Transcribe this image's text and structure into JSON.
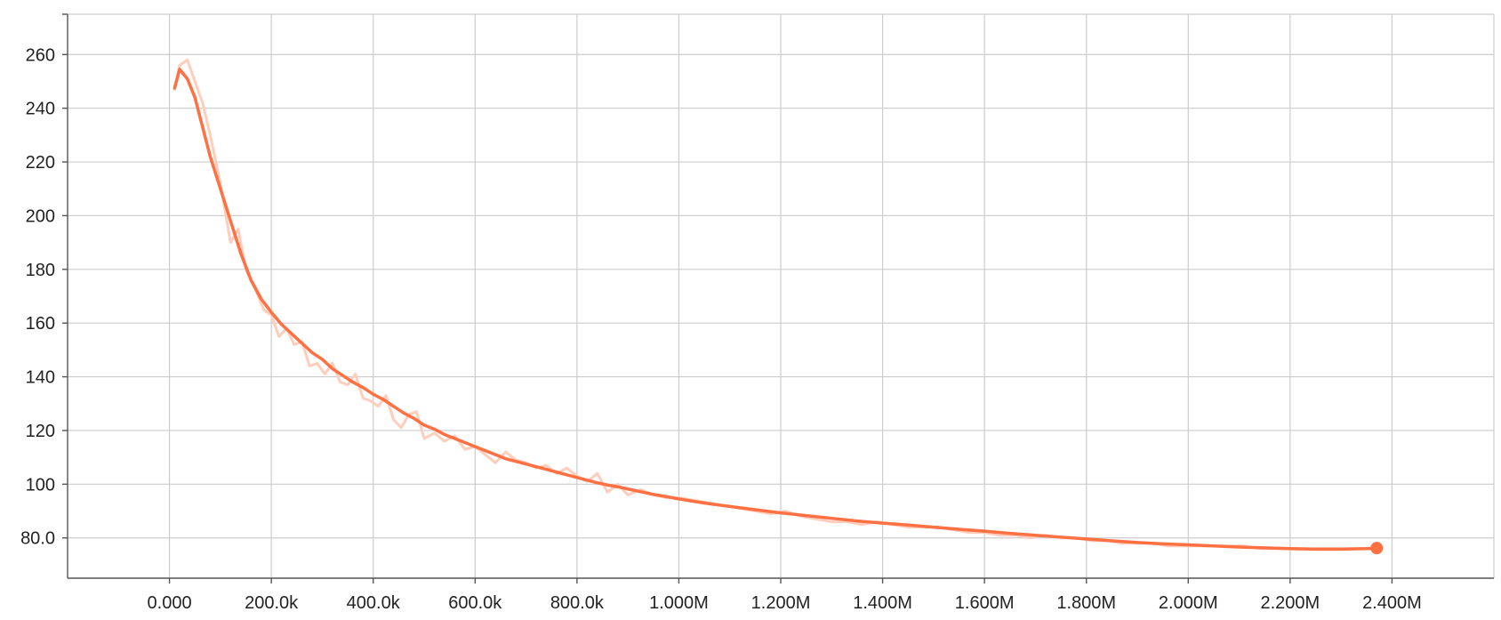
{
  "chart_data": {
    "type": "line",
    "title": "",
    "xlabel": "",
    "ylabel": "",
    "xlim": [
      -200000,
      2600000
    ],
    "ylim": [
      65,
      275
    ],
    "x_ticks": [
      0,
      200000,
      400000,
      600000,
      800000,
      1000000,
      1200000,
      1400000,
      1600000,
      1800000,
      2000000,
      2200000,
      2400000
    ],
    "x_tick_labels": [
      "0.000",
      "200.0k",
      "400.0k",
      "600.0k",
      "800.0k",
      "1.000M",
      "1.200M",
      "1.400M",
      "1.600M",
      "1.800M",
      "2.000M",
      "2.200M",
      "2.400M"
    ],
    "y_ticks": [
      80,
      100,
      120,
      140,
      160,
      180,
      200,
      220,
      240,
      260
    ],
    "y_tick_labels": [
      "80.0",
      "100",
      "120",
      "140",
      "160",
      "180",
      "200",
      "220",
      "240",
      "260"
    ],
    "grid": true,
    "colors": {
      "smoothed": "#ff7043",
      "raw": "#ffcdbc",
      "grid": "#cccccc",
      "axis": "#555555"
    },
    "series": [
      {
        "kind": "raw",
        "x": [
          10000,
          20000,
          35000,
          50000,
          65000,
          80000,
          100000,
          120000,
          135000,
          150000,
          170000,
          185000,
          200000,
          215000,
          230000,
          245000,
          260000,
          275000,
          290000,
          305000,
          320000,
          335000,
          350000,
          365000,
          380000,
          395000,
          410000,
          425000,
          440000,
          455000,
          470000,
          485000,
          500000,
          520000,
          540000,
          560000,
          580000,
          600000,
          620000,
          640000,
          660000,
          680000,
          700000,
          720000,
          740000,
          760000,
          780000,
          800000,
          820000,
          840000,
          860000,
          880000,
          900000,
          925000,
          950000,
          975000,
          1000000,
          1030000,
          1060000,
          1090000,
          1120000,
          1150000,
          1180000,
          1210000,
          1240000,
          1270000,
          1300000,
          1330000,
          1360000,
          1390000,
          1420000,
          1450000,
          1480000,
          1510000,
          1540000,
          1570000,
          1600000,
          1630000,
          1660000,
          1690000,
          1720000,
          1750000,
          1780000,
          1810000,
          1840000,
          1870000,
          1900000,
          1930000,
          1960000,
          1990000,
          2020000,
          2050000,
          2080000,
          2110000,
          2140000,
          2170000,
          2200000,
          2230000,
          2260000,
          2290000,
          2320000,
          2350000,
          2370000
        ],
        "y": [
          247,
          256,
          258,
          250,
          242,
          230,
          212,
          190,
          195,
          180,
          172,
          165,
          163,
          155,
          158,
          152,
          153,
          144,
          145,
          141,
          145,
          138,
          137,
          141,
          132,
          131,
          129,
          133,
          124,
          121,
          126,
          127,
          117,
          119,
          116,
          118,
          113,
          114,
          111,
          108,
          112,
          109,
          108,
          106,
          107,
          104,
          106,
          103,
          101,
          104,
          97,
          100,
          96,
          98,
          96,
          95,
          95,
          94,
          93,
          92,
          91,
          90,
          89,
          90,
          88,
          87,
          86,
          86,
          85,
          86,
          85,
          84,
          84,
          84,
          83,
          82,
          82,
          81,
          81,
          80,
          81,
          80,
          80,
          79,
          79,
          78,
          78,
          78,
          77,
          77,
          77,
          77,
          77,
          77,
          76,
          76,
          76,
          76,
          76,
          76,
          76,
          76,
          76
        ]
      },
      {
        "kind": "smoothed",
        "x": [
          10000,
          20000,
          35000,
          50000,
          65000,
          80000,
          100000,
          120000,
          140000,
          160000,
          180000,
          200000,
          220000,
          240000,
          260000,
          280000,
          300000,
          320000,
          340000,
          360000,
          380000,
          400000,
          420000,
          440000,
          460000,
          480000,
          500000,
          520000,
          540000,
          560000,
          580000,
          600000,
          620000,
          640000,
          660000,
          680000,
          700000,
          720000,
          740000,
          760000,
          780000,
          800000,
          820000,
          840000,
          860000,
          880000,
          900000,
          925000,
          950000,
          975000,
          1000000,
          1050000,
          1100000,
          1150000,
          1200000,
          1250000,
          1300000,
          1350000,
          1400000,
          1450000,
          1500000,
          1550000,
          1600000,
          1650000,
          1700000,
          1750000,
          1800000,
          1850000,
          1900000,
          1950000,
          2000000,
          2050000,
          2100000,
          2150000,
          2200000,
          2250000,
          2300000,
          2350000,
          2370000
        ],
        "y": [
          247.5,
          254.5,
          251,
          244,
          233,
          222,
          210,
          198,
          186,
          176,
          169,
          164,
          159.5,
          156,
          152.5,
          149,
          146.5,
          143,
          140.5,
          138,
          136,
          133.5,
          131.5,
          129,
          126.5,
          124.5,
          122,
          120.5,
          118.5,
          117,
          115.5,
          114,
          112.5,
          111,
          109.5,
          108.5,
          107.5,
          106.5,
          105.5,
          104.5,
          103.5,
          102.5,
          101.5,
          100.5,
          99.7,
          99,
          98.2,
          97.2,
          96.2,
          95.4,
          94.5,
          93,
          91.7,
          90.5,
          89.3,
          88.3,
          87.3,
          86.3,
          85.5,
          84.8,
          84,
          83.2,
          82.5,
          81.7,
          81,
          80.3,
          79.6,
          78.9,
          78.3,
          77.8,
          77.4,
          77,
          76.6,
          76.3,
          76,
          75.8,
          75.8,
          76,
          76.2
        ]
      }
    ]
  }
}
